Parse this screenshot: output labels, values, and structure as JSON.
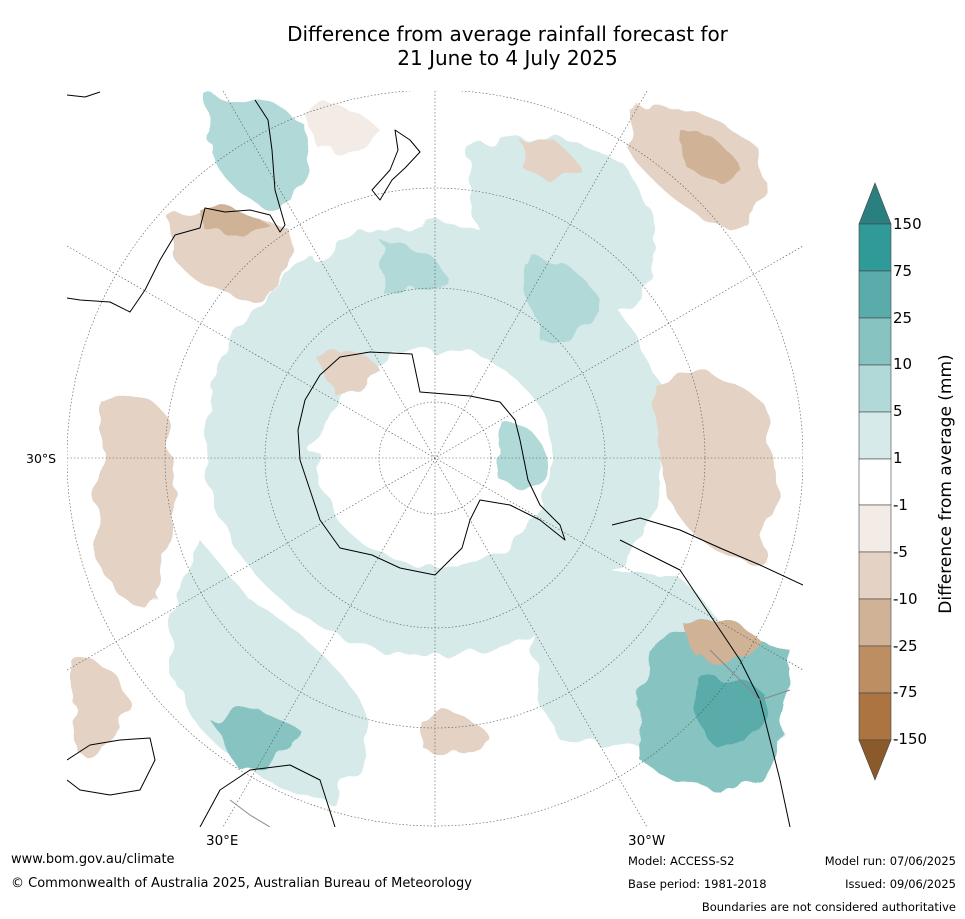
{
  "title_line1": "Difference from average rainfall forecast for",
  "title_line2": "21 June to 4 July 2025",
  "map": {
    "projection": "south-polar-stereographic",
    "lat_label": "30°S",
    "lon_labels": [
      "30°E",
      "30°W"
    ]
  },
  "colorbar": {
    "label": "Difference from average (mm)",
    "ticks": [
      "150",
      "75",
      "25",
      "10",
      "5",
      "1",
      "-1",
      "-5",
      "-10",
      "-25",
      "-75",
      "-150"
    ],
    "colors": [
      "#2a7f7f",
      "#309a99",
      "#5aacab",
      "#86c3c1",
      "#b0d9d7",
      "#d5eae9",
      "#ffffff",
      "#f3ece6",
      "#e4d3c4",
      "#d0b296",
      "#be8e63",
      "#ab7440",
      "#8b5a2b"
    ]
  },
  "footer": {
    "url": "www.bom.gov.au/climate",
    "copyright": "© Commonwealth of Australia 2025, Australian Bureau of Meteorology",
    "model": "Model: ACCESS-S2",
    "base_period": "Base period: 1981-2018",
    "model_run": "Model run: 07/06/2025",
    "issued": "Issued: 09/06/2025",
    "disclaimer": "Boundaries are not considered authoritative"
  }
}
